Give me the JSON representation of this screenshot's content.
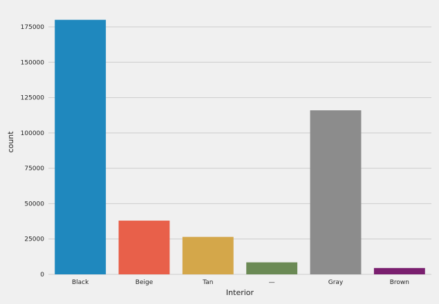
{
  "chart_data": {
    "type": "bar",
    "title": "",
    "xlabel": "Interior",
    "ylabel": "count",
    "categories": [
      "Black",
      "Beige",
      "Tan",
      "—",
      "Gray",
      "Brown"
    ],
    "values": [
      180000,
      38000,
      26500,
      8500,
      116000,
      4500
    ],
    "colors": [
      "#1f88be",
      "#e8604a",
      "#d4a74a",
      "#6b8a55",
      "#8c8c8c",
      "#7a1f6f"
    ],
    "ylim": [
      0,
      180000
    ],
    "yticks": [
      0,
      25000,
      50000,
      75000,
      100000,
      125000,
      150000,
      175000
    ],
    "grid": true,
    "legend": "none"
  }
}
